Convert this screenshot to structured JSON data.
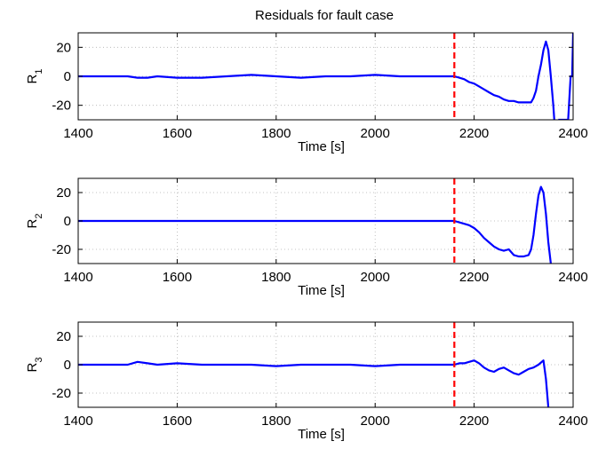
{
  "chart_data": [
    {
      "type": "line",
      "title": "Residuals for fault case",
      "xlabel": "Time [s]",
      "ylabel_main": "R",
      "ylabel_sub": "1",
      "xlim": [
        1400,
        2400
      ],
      "ylim": [
        -30,
        30
      ],
      "xticks": [
        1400,
        1600,
        1800,
        2000,
        2200,
        2400
      ],
      "yticks": [
        20,
        0,
        -20
      ],
      "grid": true,
      "fault_time": 2160,
      "series_color": "#0000ff",
      "fault_color": "#ff0000",
      "series": [
        {
          "x": [
            1400,
            1450,
            1500,
            1520,
            1540,
            1560,
            1600,
            1650,
            1700,
            1750,
            1800,
            1850,
            1900,
            1950,
            2000,
            2050,
            2100,
            2140,
            2160,
            2170,
            2180,
            2190,
            2200,
            2210,
            2220,
            2230,
            2240,
            2250,
            2260,
            2270,
            2280,
            2290,
            2300,
            2310,
            2315,
            2320,
            2325,
            2330,
            2335,
            2340,
            2345,
            2350,
            2355,
            2360,
            2362,
            2365,
            2370,
            2380,
            2390,
            2395,
            2398,
            2400
          ],
          "y": [
            0,
            0,
            0,
            -1,
            -1,
            0,
            -1,
            -1,
            0,
            1,
            0,
            -1,
            0,
            0,
            1,
            0,
            0,
            0,
            0,
            -1,
            -2,
            -4,
            -5,
            -7,
            -9,
            -11,
            -13,
            -14,
            -16,
            -17,
            -17,
            -18,
            -18,
            -18,
            -18,
            -15,
            -10,
            0,
            8,
            18,
            24,
            18,
            0,
            -20,
            -30,
            null,
            -30,
            -30,
            -30,
            0,
            0,
            30
          ]
        }
      ]
    },
    {
      "type": "line",
      "xlabel": "Time [s]",
      "ylabel_main": "R",
      "ylabel_sub": "2",
      "xlim": [
        1400,
        2400
      ],
      "ylim": [
        -30,
        30
      ],
      "xticks": [
        1400,
        1600,
        1800,
        2000,
        2200,
        2400
      ],
      "yticks": [
        20,
        0,
        -20
      ],
      "grid": true,
      "fault_time": 2160,
      "series_color": "#0000ff",
      "fault_color": "#ff0000",
      "series": [
        {
          "x": [
            1400,
            1500,
            1600,
            1700,
            1800,
            1900,
            2000,
            2100,
            2160,
            2170,
            2180,
            2190,
            2200,
            2210,
            2220,
            2230,
            2240,
            2250,
            2260,
            2270,
            2280,
            2290,
            2300,
            2310,
            2315,
            2320,
            2325,
            2330,
            2335,
            2340,
            2345,
            2350,
            2355
          ],
          "y": [
            0,
            0,
            0,
            0,
            0,
            0,
            0,
            0,
            0,
            -1,
            -2,
            -3,
            -5,
            -8,
            -12,
            -15,
            -18,
            -20,
            -21,
            -20,
            -24,
            -25,
            -25,
            -24,
            -20,
            -10,
            5,
            18,
            24,
            20,
            5,
            -15,
            -30
          ]
        }
      ]
    },
    {
      "type": "line",
      "xlabel": "Time [s]",
      "ylabel_main": "R",
      "ylabel_sub": "3",
      "xlim": [
        1400,
        2400
      ],
      "ylim": [
        -30,
        30
      ],
      "xticks": [
        1400,
        1600,
        1800,
        2000,
        2200,
        2400
      ],
      "yticks": [
        20,
        0,
        -20
      ],
      "grid": true,
      "fault_time": 2160,
      "series_color": "#0000ff",
      "fault_color": "#ff0000",
      "series": [
        {
          "x": [
            1400,
            1450,
            1500,
            1520,
            1540,
            1560,
            1600,
            1650,
            1700,
            1750,
            1800,
            1850,
            1900,
            1950,
            2000,
            2050,
            2100,
            2150,
            2160,
            2170,
            2180,
            2190,
            2200,
            2210,
            2220,
            2230,
            2240,
            2250,
            2260,
            2270,
            2280,
            2290,
            2300,
            2310,
            2320,
            2330,
            2340,
            2345,
            2350
          ],
          "y": [
            0,
            0,
            0,
            2,
            1,
            0,
            1,
            0,
            0,
            0,
            -1,
            0,
            0,
            0,
            -1,
            0,
            0,
            0,
            0,
            1,
            1,
            2,
            3,
            1,
            -2,
            -4,
            -5,
            -3,
            -2,
            -4,
            -6,
            -7,
            -5,
            -3,
            -2,
            0,
            3,
            -10,
            -30
          ]
        }
      ]
    }
  ]
}
